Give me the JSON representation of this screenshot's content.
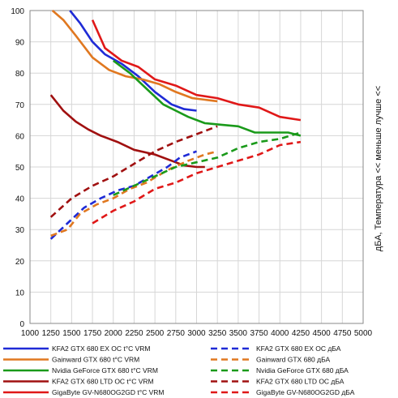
{
  "chart_data": {
    "type": "line",
    "ylabel": "дБА, Температура << меньше лучше <<",
    "xlim": [
      1000,
      5000
    ],
    "ylim": [
      0,
      100
    ],
    "x_ticks": [
      1000,
      1250,
      1500,
      1750,
      2000,
      2250,
      2500,
      2750,
      3000,
      3250,
      3500,
      3750,
      4000,
      4250,
      4500,
      4750,
      5000
    ],
    "y_ticks": [
      0,
      10,
      20,
      30,
      40,
      50,
      60,
      70,
      80,
      90,
      100
    ],
    "grid": true,
    "legend_position": "bottom",
    "series": [
      {
        "name": "KFA2 GTX 680 EX OC t°C VRM",
        "color": "#1f2bd6",
        "style": "solid",
        "x": [
          1480,
          1600,
          1750,
          1900,
          2100,
          2300,
          2500,
          2700,
          2850,
          3000
        ],
        "y": [
          100,
          96,
          90,
          86,
          83,
          79,
          74,
          70,
          68.5,
          68
        ]
      },
      {
        "name": "Gainward GTX 680 t°C VRM",
        "color": "#e07820",
        "style": "solid",
        "x": [
          1270,
          1400,
          1550,
          1750,
          1950,
          2150,
          2350,
          2550,
          2750,
          2950,
          3100,
          3250
        ],
        "y": [
          100,
          97,
          92,
          85,
          81,
          79,
          78,
          76.5,
          74,
          72,
          71.5,
          71
        ]
      },
      {
        "name": "Nvidia GeForce GTX 680 t°C VRM",
        "color": "#1a9a1a",
        "style": "solid",
        "x": [
          2000,
          2200,
          2400,
          2600,
          2750,
          2900,
          3100,
          3300,
          3500,
          3700,
          3900,
          4100,
          4250
        ],
        "y": [
          84,
          80,
          75,
          70,
          68,
          66,
          64,
          63.5,
          63,
          61,
          61,
          61,
          60
        ]
      },
      {
        "name": "KFA2 GTX 680 LTD OC t°C VRM",
        "color": "#a01010",
        "style": "solid",
        "x": [
          1250,
          1400,
          1550,
          1700,
          1850,
          2050,
          2250,
          2500,
          2700,
          2850,
          3000,
          3100
        ],
        "y": [
          73,
          68,
          64.5,
          62,
          60,
          58,
          55.5,
          54,
          52,
          50.5,
          50,
          50
        ]
      },
      {
        "name": "GigaByte GV-N680OG2GD t°C VRM",
        "color": "#e01818",
        "style": "solid",
        "x": [
          1750,
          1900,
          2100,
          2300,
          2500,
          2750,
          3000,
          3250,
          3500,
          3750,
          4000,
          4250
        ],
        "y": [
          97,
          88,
          84,
          82,
          78,
          76,
          73,
          72,
          70,
          69,
          66,
          65
        ]
      },
      {
        "name": "KFA2 GTX 680 EX OC дБА",
        "color": "#1f2bd6",
        "style": "dashed",
        "x": [
          1250,
          1450,
          1650,
          1850,
          2050,
          2250,
          2450,
          2650,
          2800,
          3000
        ],
        "y": [
          27,
          32,
          37,
          40,
          42.5,
          44,
          47,
          50,
          53,
          55
        ]
      },
      {
        "name": "Gainward GTX 680 дБА",
        "color": "#e07820",
        "style": "dashed",
        "x": [
          1250,
          1450,
          1600,
          1800,
          2000,
          2200,
          2400,
          2650,
          2900,
          3100,
          3250
        ],
        "y": [
          28,
          30,
          35,
          38,
          40,
          43,
          45,
          49,
          52,
          54,
          55
        ]
      },
      {
        "name": "Nvidia GeForce GTX 680 дБА",
        "color": "#1a9a1a",
        "style": "dashed",
        "x": [
          2000,
          2250,
          2500,
          2750,
          3000,
          3250,
          3500,
          3750,
          4000,
          4250
        ],
        "y": [
          41,
          44,
          47,
          50,
          51.5,
          53,
          56,
          58,
          59,
          61
        ]
      },
      {
        "name": "KFA2 GTX 680 LTD OC дБА",
        "color": "#a01010",
        "style": "dashed",
        "x": [
          1250,
          1500,
          1750,
          2000,
          2250,
          2500,
          2750,
          3000,
          3250
        ],
        "y": [
          34,
          40,
          44,
          47,
          51,
          55,
          58,
          60.5,
          63
        ]
      },
      {
        "name": "GigaByte GV-N680OG2GD дБА",
        "color": "#e01818",
        "style": "dashed",
        "x": [
          1750,
          2000,
          2250,
          2500,
          2750,
          3000,
          3250,
          3500,
          3750,
          4000,
          4250
        ],
        "y": [
          32,
          36,
          39,
          43,
          45,
          48,
          50,
          52,
          54,
          57,
          58
        ]
      }
    ]
  }
}
